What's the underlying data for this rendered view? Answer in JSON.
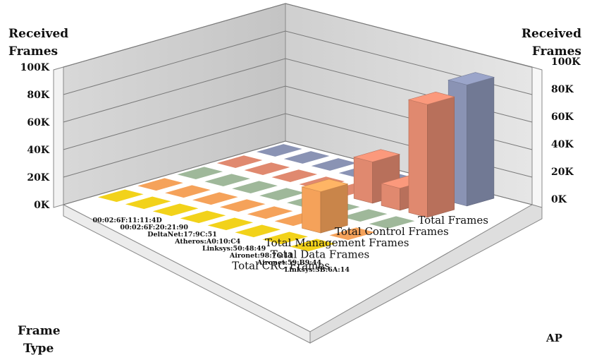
{
  "chart_data": {
    "type": "bar3d",
    "title": "",
    "left_axis_title": [
      "Received",
      "Frames"
    ],
    "right_axis_title": [
      "Received",
      "Frames"
    ],
    "y_ticks": [
      "0K",
      "20K",
      "40K",
      "60K",
      "80K",
      "100K"
    ],
    "ylim": [
      0,
      100000
    ],
    "frame_type_title": [
      "Frame",
      "Type"
    ],
    "ap_title": "AP",
    "frame_types": [
      "Total Frames",
      "Total Control Frames",
      "Total Management Frames",
      "Total Data Frames",
      "Total CRC Frames"
    ],
    "aps": [
      "Linksys:3B:6A:14",
      "Aironet:59:B9:44",
      "Aironet:98:76:11",
      "Linksys:50:48:49",
      "Atheros:A0:10:C4",
      "DeltaNet:17:9C:51",
      "00:02:6F:20:21:90",
      "00:02:6F:11:11:4D"
    ],
    "series": [
      {
        "name": "Total Frames",
        "color": "#8a93b4",
        "values": [
          88000,
          50000,
          0,
          0,
          0,
          0,
          0,
          0
        ]
      },
      {
        "name": "Total Control Frames",
        "color": "#e0896f",
        "values": [
          82000,
          16000,
          30000,
          0,
          0,
          0,
          0,
          0
        ]
      },
      {
        "name": "Total Management Frames",
        "color": "#9fb89a",
        "values": [
          0,
          0,
          0,
          0,
          0,
          0,
          0,
          0
        ]
      },
      {
        "name": "Total Data Frames",
        "color": "#f5a25a",
        "values": [
          0,
          30000,
          0,
          0,
          0,
          0,
          0,
          0
        ]
      },
      {
        "name": "Total CRC Frames",
        "color": "#f2d21a",
        "values": [
          0,
          0,
          0,
          0,
          0,
          0,
          0,
          0
        ]
      }
    ]
  }
}
